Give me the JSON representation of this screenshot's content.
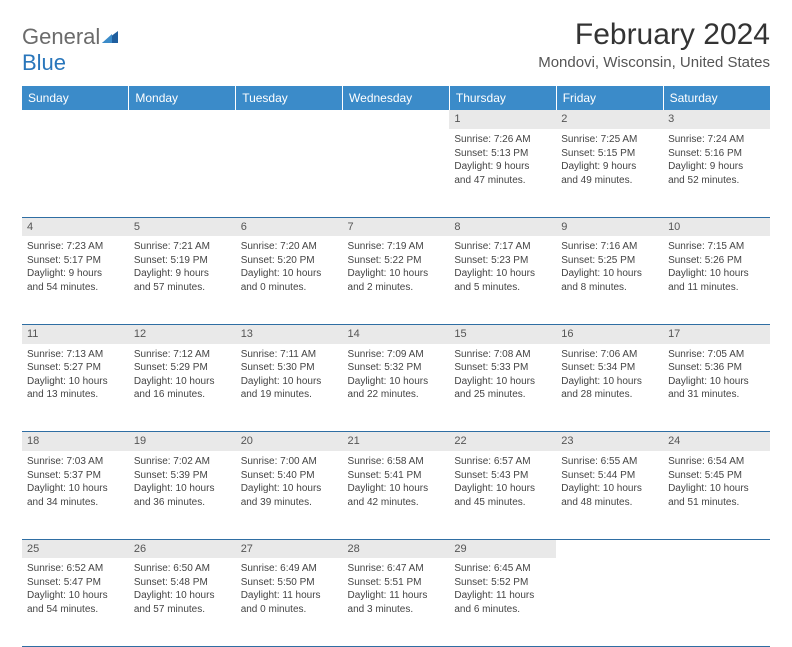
{
  "brand": {
    "part1": "General",
    "part2": "Blue"
  },
  "title": "February 2024",
  "location": "Mondovi, Wisconsin, United States",
  "colors": {
    "header_bg": "#3b8bc9",
    "header_text": "#ffffff",
    "daynum_bg": "#e9e9e9",
    "border": "#2f6ea3",
    "logo_gray": "#6b6b6b",
    "logo_blue": "#2976bb"
  },
  "day_headers": [
    "Sunday",
    "Monday",
    "Tuesday",
    "Wednesday",
    "Thursday",
    "Friday",
    "Saturday"
  ],
  "weeks": [
    {
      "nums": [
        "",
        "",
        "",
        "",
        "1",
        "2",
        "3"
      ],
      "cells": [
        null,
        null,
        null,
        null,
        {
          "sunrise": "Sunrise: 7:26 AM",
          "sunset": "Sunset: 5:13 PM",
          "day1": "Daylight: 9 hours",
          "day2": "and 47 minutes."
        },
        {
          "sunrise": "Sunrise: 7:25 AM",
          "sunset": "Sunset: 5:15 PM",
          "day1": "Daylight: 9 hours",
          "day2": "and 49 minutes."
        },
        {
          "sunrise": "Sunrise: 7:24 AM",
          "sunset": "Sunset: 5:16 PM",
          "day1": "Daylight: 9 hours",
          "day2": "and 52 minutes."
        }
      ]
    },
    {
      "nums": [
        "4",
        "5",
        "6",
        "7",
        "8",
        "9",
        "10"
      ],
      "cells": [
        {
          "sunrise": "Sunrise: 7:23 AM",
          "sunset": "Sunset: 5:17 PM",
          "day1": "Daylight: 9 hours",
          "day2": "and 54 minutes."
        },
        {
          "sunrise": "Sunrise: 7:21 AM",
          "sunset": "Sunset: 5:19 PM",
          "day1": "Daylight: 9 hours",
          "day2": "and 57 minutes."
        },
        {
          "sunrise": "Sunrise: 7:20 AM",
          "sunset": "Sunset: 5:20 PM",
          "day1": "Daylight: 10 hours",
          "day2": "and 0 minutes."
        },
        {
          "sunrise": "Sunrise: 7:19 AM",
          "sunset": "Sunset: 5:22 PM",
          "day1": "Daylight: 10 hours",
          "day2": "and 2 minutes."
        },
        {
          "sunrise": "Sunrise: 7:17 AM",
          "sunset": "Sunset: 5:23 PM",
          "day1": "Daylight: 10 hours",
          "day2": "and 5 minutes."
        },
        {
          "sunrise": "Sunrise: 7:16 AM",
          "sunset": "Sunset: 5:25 PM",
          "day1": "Daylight: 10 hours",
          "day2": "and 8 minutes."
        },
        {
          "sunrise": "Sunrise: 7:15 AM",
          "sunset": "Sunset: 5:26 PM",
          "day1": "Daylight: 10 hours",
          "day2": "and 11 minutes."
        }
      ]
    },
    {
      "nums": [
        "11",
        "12",
        "13",
        "14",
        "15",
        "16",
        "17"
      ],
      "cells": [
        {
          "sunrise": "Sunrise: 7:13 AM",
          "sunset": "Sunset: 5:27 PM",
          "day1": "Daylight: 10 hours",
          "day2": "and 13 minutes."
        },
        {
          "sunrise": "Sunrise: 7:12 AM",
          "sunset": "Sunset: 5:29 PM",
          "day1": "Daylight: 10 hours",
          "day2": "and 16 minutes."
        },
        {
          "sunrise": "Sunrise: 7:11 AM",
          "sunset": "Sunset: 5:30 PM",
          "day1": "Daylight: 10 hours",
          "day2": "and 19 minutes."
        },
        {
          "sunrise": "Sunrise: 7:09 AM",
          "sunset": "Sunset: 5:32 PM",
          "day1": "Daylight: 10 hours",
          "day2": "and 22 minutes."
        },
        {
          "sunrise": "Sunrise: 7:08 AM",
          "sunset": "Sunset: 5:33 PM",
          "day1": "Daylight: 10 hours",
          "day2": "and 25 minutes."
        },
        {
          "sunrise": "Sunrise: 7:06 AM",
          "sunset": "Sunset: 5:34 PM",
          "day1": "Daylight: 10 hours",
          "day2": "and 28 minutes."
        },
        {
          "sunrise": "Sunrise: 7:05 AM",
          "sunset": "Sunset: 5:36 PM",
          "day1": "Daylight: 10 hours",
          "day2": "and 31 minutes."
        }
      ]
    },
    {
      "nums": [
        "18",
        "19",
        "20",
        "21",
        "22",
        "23",
        "24"
      ],
      "cells": [
        {
          "sunrise": "Sunrise: 7:03 AM",
          "sunset": "Sunset: 5:37 PM",
          "day1": "Daylight: 10 hours",
          "day2": "and 34 minutes."
        },
        {
          "sunrise": "Sunrise: 7:02 AM",
          "sunset": "Sunset: 5:39 PM",
          "day1": "Daylight: 10 hours",
          "day2": "and 36 minutes."
        },
        {
          "sunrise": "Sunrise: 7:00 AM",
          "sunset": "Sunset: 5:40 PM",
          "day1": "Daylight: 10 hours",
          "day2": "and 39 minutes."
        },
        {
          "sunrise": "Sunrise: 6:58 AM",
          "sunset": "Sunset: 5:41 PM",
          "day1": "Daylight: 10 hours",
          "day2": "and 42 minutes."
        },
        {
          "sunrise": "Sunrise: 6:57 AM",
          "sunset": "Sunset: 5:43 PM",
          "day1": "Daylight: 10 hours",
          "day2": "and 45 minutes."
        },
        {
          "sunrise": "Sunrise: 6:55 AM",
          "sunset": "Sunset: 5:44 PM",
          "day1": "Daylight: 10 hours",
          "day2": "and 48 minutes."
        },
        {
          "sunrise": "Sunrise: 6:54 AM",
          "sunset": "Sunset: 5:45 PM",
          "day1": "Daylight: 10 hours",
          "day2": "and 51 minutes."
        }
      ]
    },
    {
      "nums": [
        "25",
        "26",
        "27",
        "28",
        "29",
        "",
        ""
      ],
      "cells": [
        {
          "sunrise": "Sunrise: 6:52 AM",
          "sunset": "Sunset: 5:47 PM",
          "day1": "Daylight: 10 hours",
          "day2": "and 54 minutes."
        },
        {
          "sunrise": "Sunrise: 6:50 AM",
          "sunset": "Sunset: 5:48 PM",
          "day1": "Daylight: 10 hours",
          "day2": "and 57 minutes."
        },
        {
          "sunrise": "Sunrise: 6:49 AM",
          "sunset": "Sunset: 5:50 PM",
          "day1": "Daylight: 11 hours",
          "day2": "and 0 minutes."
        },
        {
          "sunrise": "Sunrise: 6:47 AM",
          "sunset": "Sunset: 5:51 PM",
          "day1": "Daylight: 11 hours",
          "day2": "and 3 minutes."
        },
        {
          "sunrise": "Sunrise: 6:45 AM",
          "sunset": "Sunset: 5:52 PM",
          "day1": "Daylight: 11 hours",
          "day2": "and 6 minutes."
        },
        null,
        null
      ]
    }
  ]
}
